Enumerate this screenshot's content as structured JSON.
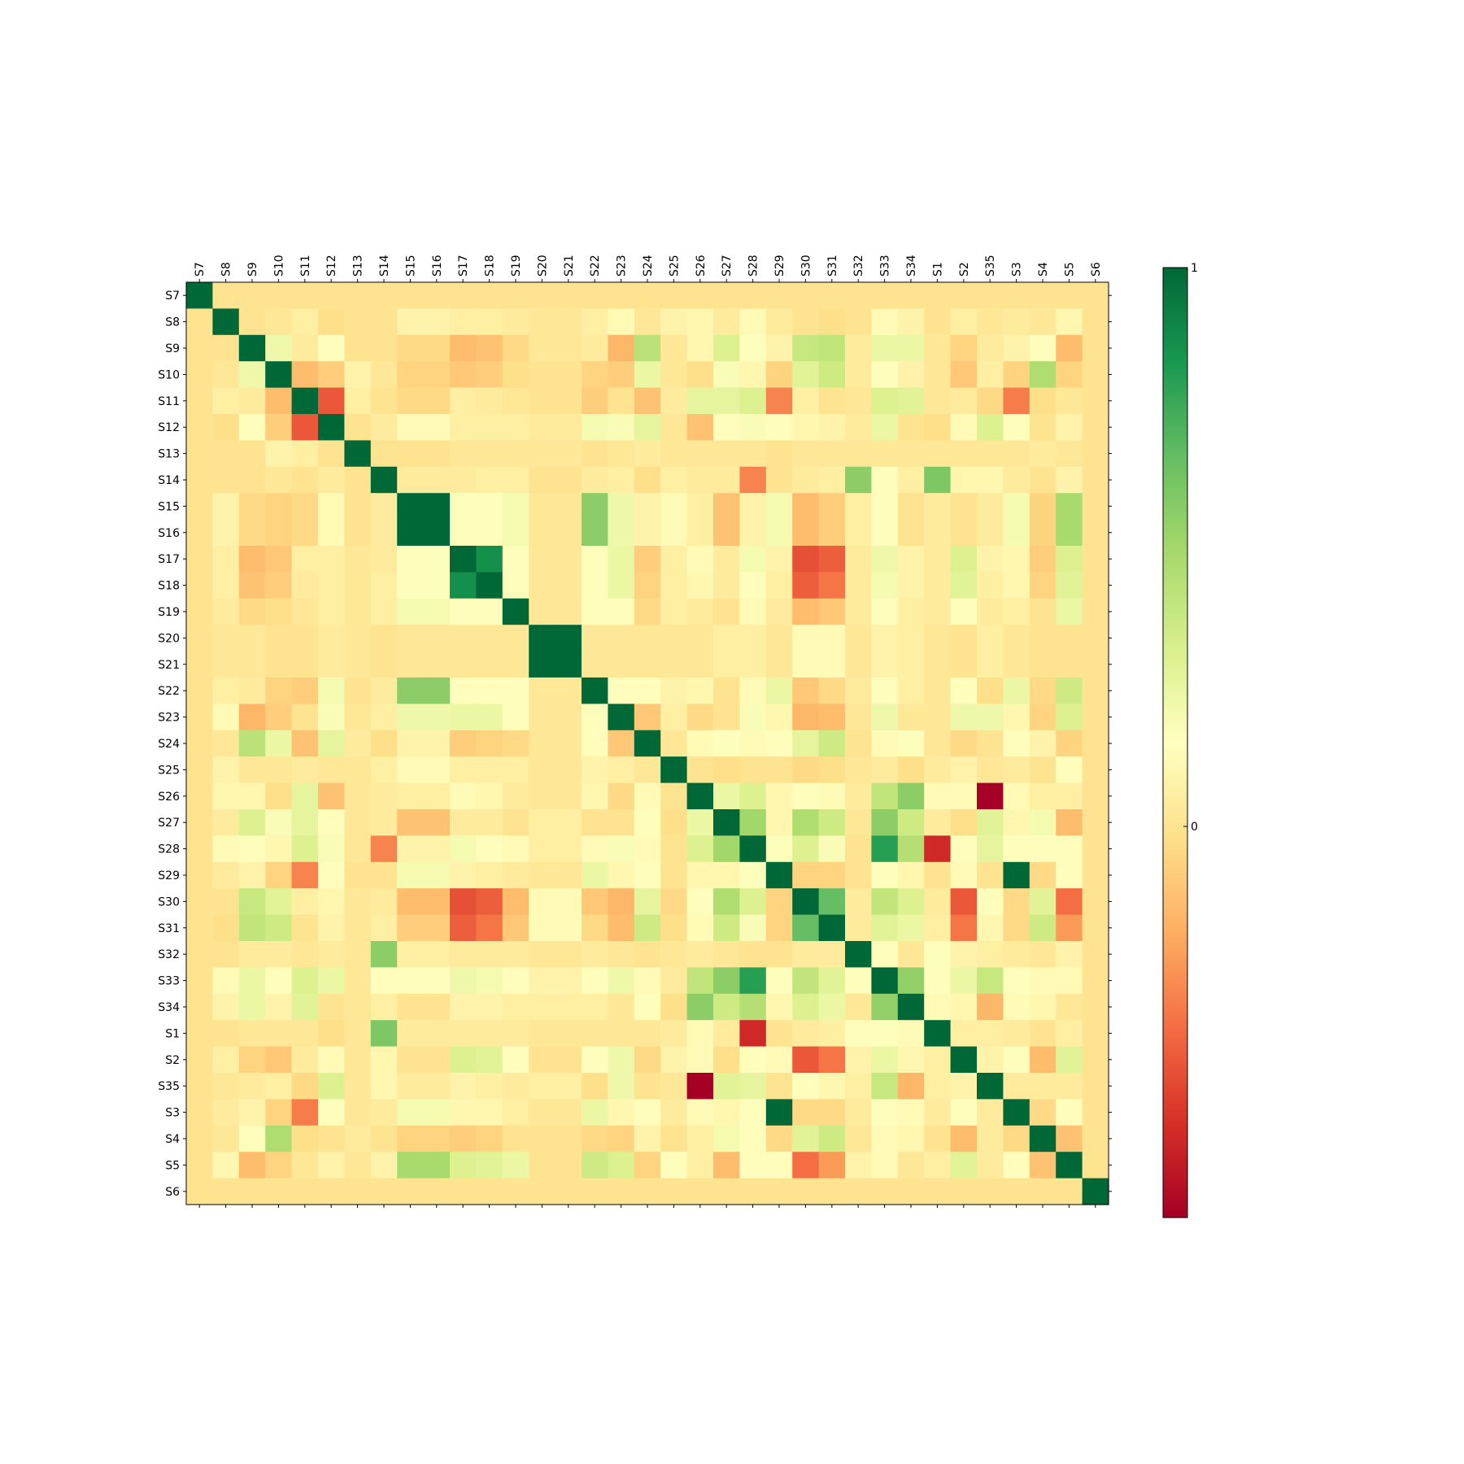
{
  "chart_data": {
    "type": "heatmap",
    "title": "",
    "xlabel": "",
    "ylabel": "",
    "x_tick_position": "top",
    "labels": [
      "S7",
      "S8",
      "S9",
      "S10",
      "S11",
      "S12",
      "S13",
      "S14",
      "S15",
      "S16",
      "S17",
      "S18",
      "S19",
      "S20",
      "S21",
      "S22",
      "S23",
      "S24",
      "S25",
      "S26",
      "S27",
      "S28",
      "S29",
      "S30",
      "S31",
      "S32",
      "S33",
      "S34",
      "S1",
      "S2",
      "S35",
      "S3",
      "S4",
      "S5",
      "S6"
    ],
    "colormap": "RdYlGn",
    "colorbar": {
      "ticks": [
        {
          "value": 1,
          "label": "1"
        },
        {
          "value": 0,
          "label": "0"
        }
      ],
      "vmin": -0.7,
      "vmax": 1.0
    },
    "matrix": [
      [
        1.0,
        0.0,
        0.0,
        0.0,
        0.0,
        0.0,
        0.0,
        0.0,
        0.0,
        0.0,
        0.0,
        0.0,
        0.0,
        0.0,
        0.0,
        0.0,
        0.0,
        0.0,
        0.0,
        0.0,
        0.0,
        0.0,
        0.0,
        0.0,
        0.0,
        0.0,
        0.0,
        0.0,
        0.0,
        0.0,
        0.0,
        0.0,
        0.0,
        0.0,
        0.0
      ],
      [
        0.0,
        1.0,
        0.0,
        0.02,
        0.06,
        -0.02,
        0.0,
        0.0,
        0.08,
        0.08,
        0.06,
        0.06,
        0.04,
        0.02,
        0.02,
        0.06,
        0.12,
        0.02,
        0.08,
        0.1,
        0.04,
        0.12,
        0.04,
        0.0,
        -0.02,
        0.0,
        0.12,
        0.08,
        0.0,
        0.06,
        0.02,
        0.04,
        0.02,
        0.1,
        0.0
      ],
      [
        0.0,
        0.0,
        1.0,
        0.22,
        0.04,
        0.16,
        0.0,
        0.0,
        -0.04,
        -0.04,
        -0.14,
        -0.12,
        -0.04,
        0.02,
        0.02,
        0.04,
        -0.16,
        0.42,
        0.02,
        0.1,
        0.3,
        0.16,
        0.08,
        0.38,
        0.4,
        0.04,
        0.24,
        0.24,
        0.02,
        -0.06,
        0.04,
        0.08,
        0.14,
        -0.14,
        0.0
      ],
      [
        0.0,
        0.02,
        0.22,
        1.0,
        -0.14,
        -0.08,
        0.08,
        0.02,
        -0.06,
        -0.06,
        -0.1,
        -0.08,
        -0.02,
        0.0,
        0.0,
        -0.06,
        -0.08,
        0.24,
        0.02,
        -0.02,
        0.18,
        0.1,
        -0.06,
        0.28,
        0.36,
        0.04,
        0.14,
        0.08,
        0.02,
        -0.1,
        0.06,
        -0.06,
        0.46,
        -0.06,
        0.0
      ],
      [
        0.0,
        0.06,
        0.04,
        -0.14,
        1.0,
        -0.42,
        0.06,
        0.0,
        -0.04,
        -0.04,
        0.06,
        0.04,
        0.02,
        0.0,
        0.0,
        -0.08,
        0.0,
        -0.12,
        0.04,
        0.26,
        0.26,
        0.3,
        -0.3,
        0.06,
        0.0,
        0.02,
        0.3,
        0.28,
        0.02,
        0.04,
        -0.04,
        -0.32,
        -0.02,
        0.02,
        0.0
      ],
      [
        0.0,
        -0.02,
        0.16,
        -0.08,
        -0.42,
        1.0,
        0.0,
        0.04,
        0.12,
        0.12,
        0.06,
        0.06,
        0.06,
        0.04,
        0.04,
        0.2,
        0.18,
        0.26,
        0.02,
        -0.12,
        0.14,
        0.18,
        0.14,
        0.1,
        0.08,
        0.04,
        0.24,
        0.0,
        -0.02,
        0.12,
        0.3,
        0.16,
        0.0,
        0.08,
        0.0
      ],
      [
        0.0,
        0.0,
        0.0,
        0.08,
        0.06,
        0.0,
        1.0,
        0.0,
        0.0,
        0.0,
        0.02,
        0.02,
        0.02,
        0.02,
        0.02,
        0.0,
        0.02,
        0.04,
        0.02,
        0.02,
        0.02,
        0.02,
        0.0,
        0.02,
        0.02,
        0.02,
        0.02,
        0.02,
        0.02,
        0.02,
        0.02,
        0.02,
        0.04,
        0.02,
        0.0
      ],
      [
        0.0,
        0.0,
        0.0,
        0.02,
        0.0,
        0.04,
        0.0,
        1.0,
        0.04,
        0.04,
        0.04,
        0.06,
        0.06,
        0.0,
        0.0,
        0.04,
        0.06,
        -0.02,
        0.06,
        0.04,
        0.04,
        -0.3,
        0.0,
        0.04,
        0.06,
        0.56,
        0.14,
        0.06,
        0.6,
        0.1,
        0.1,
        0.04,
        0.0,
        0.08,
        0.0
      ],
      [
        0.0,
        0.08,
        -0.04,
        -0.06,
        -0.04,
        0.12,
        0.0,
        0.04,
        1.0,
        1.0,
        0.16,
        0.16,
        0.2,
        0.02,
        0.02,
        0.56,
        0.22,
        0.08,
        0.12,
        0.06,
        -0.12,
        0.08,
        0.2,
        -0.14,
        -0.08,
        0.06,
        0.14,
        0.0,
        0.04,
        0.0,
        0.04,
        0.2,
        -0.06,
        0.48,
        0.0
      ],
      [
        0.0,
        0.08,
        -0.04,
        -0.06,
        -0.04,
        0.12,
        0.0,
        0.04,
        1.0,
        1.0,
        0.16,
        0.16,
        0.2,
        0.02,
        0.02,
        0.56,
        0.22,
        0.08,
        0.12,
        0.06,
        -0.12,
        0.08,
        0.2,
        -0.14,
        -0.08,
        0.06,
        0.14,
        0.0,
        0.04,
        0.0,
        0.04,
        0.2,
        -0.06,
        0.48,
        0.0
      ],
      [
        0.0,
        0.06,
        -0.14,
        -0.1,
        0.06,
        0.06,
        0.02,
        0.04,
        0.16,
        0.16,
        1.0,
        0.86,
        0.16,
        0.02,
        0.02,
        0.14,
        0.24,
        -0.08,
        0.06,
        0.12,
        0.04,
        0.2,
        0.08,
        -0.44,
        -0.4,
        0.04,
        0.22,
        0.08,
        0.04,
        0.3,
        0.08,
        0.1,
        -0.08,
        0.3,
        0.0
      ],
      [
        0.0,
        0.06,
        -0.12,
        -0.08,
        0.04,
        0.06,
        0.02,
        0.06,
        0.16,
        0.16,
        0.86,
        1.0,
        0.16,
        0.02,
        0.02,
        0.14,
        0.24,
        -0.06,
        0.06,
        0.1,
        0.04,
        0.14,
        0.06,
        -0.4,
        -0.34,
        0.04,
        0.2,
        0.08,
        0.04,
        0.28,
        0.06,
        0.1,
        -0.06,
        0.28,
        0.0
      ],
      [
        0.0,
        0.04,
        -0.04,
        -0.02,
        0.02,
        0.06,
        0.02,
        0.06,
        0.2,
        0.2,
        0.16,
        0.16,
        1.0,
        0.02,
        0.02,
        0.16,
        0.16,
        -0.04,
        0.06,
        0.04,
        0.0,
        0.12,
        0.04,
        -0.14,
        -0.1,
        0.04,
        0.14,
        0.06,
        0.04,
        0.14,
        0.04,
        0.06,
        0.0,
        0.24,
        0.0
      ],
      [
        0.0,
        0.02,
        0.02,
        0.0,
        0.0,
        0.04,
        0.02,
        0.0,
        0.02,
        0.02,
        0.02,
        0.02,
        0.02,
        1.0,
        1.0,
        0.02,
        0.02,
        0.02,
        0.02,
        0.02,
        0.06,
        0.06,
        0.02,
        0.12,
        0.12,
        0.02,
        0.08,
        0.06,
        0.02,
        0.0,
        0.06,
        0.02,
        0.0,
        0.0,
        0.0
      ],
      [
        0.0,
        0.02,
        0.02,
        0.0,
        0.0,
        0.04,
        0.02,
        0.0,
        0.02,
        0.02,
        0.02,
        0.02,
        0.02,
        1.0,
        1.0,
        0.02,
        0.02,
        0.02,
        0.02,
        0.02,
        0.06,
        0.06,
        0.02,
        0.12,
        0.12,
        0.02,
        0.08,
        0.06,
        0.02,
        0.0,
        0.06,
        0.02,
        0.0,
        0.0,
        0.0
      ],
      [
        0.0,
        0.06,
        0.04,
        -0.06,
        -0.08,
        0.2,
        0.0,
        0.04,
        0.56,
        0.56,
        0.14,
        0.14,
        0.16,
        0.02,
        0.02,
        1.0,
        0.14,
        0.14,
        0.08,
        0.1,
        0.0,
        0.12,
        0.24,
        -0.1,
        -0.04,
        0.04,
        0.14,
        0.06,
        0.02,
        0.14,
        -0.02,
        0.24,
        -0.04,
        0.36,
        0.0
      ],
      [
        0.0,
        0.12,
        -0.16,
        -0.08,
        0.0,
        0.18,
        0.02,
        0.06,
        0.22,
        0.22,
        0.24,
        0.24,
        0.16,
        0.02,
        0.02,
        0.14,
        1.0,
        -0.1,
        0.06,
        -0.04,
        0.0,
        0.18,
        0.1,
        -0.16,
        -0.14,
        0.02,
        0.22,
        0.02,
        0.02,
        0.22,
        0.22,
        0.1,
        -0.06,
        0.3,
        0.0
      ],
      [
        0.0,
        0.02,
        0.42,
        0.24,
        -0.12,
        0.26,
        0.04,
        -0.02,
        0.08,
        0.08,
        -0.08,
        -0.06,
        -0.04,
        0.02,
        0.02,
        0.14,
        -0.1,
        1.0,
        0.02,
        0.12,
        0.16,
        0.12,
        0.14,
        0.26,
        0.36,
        0.0,
        0.12,
        0.16,
        0.02,
        -0.04,
        0.0,
        0.14,
        0.08,
        -0.06,
        0.0
      ],
      [
        0.0,
        0.08,
        0.02,
        0.02,
        0.04,
        0.02,
        0.02,
        0.06,
        0.12,
        0.12,
        0.06,
        0.06,
        0.06,
        0.02,
        0.02,
        0.08,
        0.06,
        0.02,
        1.0,
        0.0,
        -0.02,
        0.0,
        0.0,
        -0.04,
        -0.02,
        0.02,
        0.04,
        -0.02,
        0.04,
        0.08,
        0.02,
        0.04,
        0.0,
        0.14,
        0.0
      ],
      [
        0.0,
        0.1,
        0.1,
        -0.02,
        0.26,
        -0.12,
        0.02,
        0.04,
        0.06,
        0.06,
        0.12,
        0.1,
        0.04,
        0.02,
        0.02,
        0.1,
        -0.04,
        0.12,
        0.0,
        1.0,
        0.24,
        0.3,
        0.1,
        0.16,
        0.12,
        0.04,
        0.4,
        0.56,
        0.12,
        0.12,
        -0.7,
        0.12,
        0.06,
        0.06,
        0.0
      ],
      [
        0.0,
        0.04,
        0.3,
        0.18,
        0.26,
        0.14,
        0.02,
        0.04,
        -0.12,
        -0.12,
        0.04,
        0.04,
        0.0,
        0.06,
        0.06,
        0.0,
        0.0,
        0.16,
        -0.02,
        0.24,
        1.0,
        0.5,
        0.1,
        0.46,
        0.36,
        0.02,
        0.56,
        0.36,
        0.04,
        -0.02,
        0.28,
        0.1,
        0.2,
        -0.14,
        0.0
      ],
      [
        0.0,
        0.12,
        0.16,
        0.1,
        0.3,
        0.18,
        0.02,
        -0.3,
        0.08,
        0.08,
        0.2,
        0.14,
        0.12,
        0.06,
        0.06,
        0.12,
        0.18,
        0.12,
        0.0,
        0.3,
        0.5,
        1.0,
        0.16,
        0.3,
        0.18,
        0.0,
        0.8,
        0.44,
        -0.56,
        0.14,
        0.26,
        0.14,
        0.14,
        0.14,
        0.0
      ],
      [
        0.0,
        0.04,
        0.08,
        -0.06,
        -0.3,
        0.14,
        0.0,
        0.0,
        0.2,
        0.2,
        0.08,
        0.06,
        0.04,
        0.02,
        0.02,
        0.24,
        0.1,
        0.14,
        0.0,
        0.1,
        0.1,
        0.16,
        1.0,
        -0.06,
        -0.06,
        0.0,
        0.16,
        0.1,
        0.0,
        0.12,
        0.0,
        1.0,
        -0.04,
        0.14,
        0.0
      ],
      [
        0.0,
        0.0,
        0.38,
        0.28,
        0.06,
        0.1,
        0.02,
        0.04,
        -0.14,
        -0.14,
        -0.44,
        -0.4,
        -0.14,
        0.12,
        0.12,
        -0.1,
        -0.16,
        0.26,
        -0.04,
        0.16,
        0.46,
        0.3,
        -0.06,
        1.0,
        0.66,
        0.04,
        0.4,
        0.3,
        0.04,
        -0.42,
        0.14,
        -0.04,
        0.28,
        -0.36,
        0.0
      ],
      [
        0.0,
        -0.02,
        0.4,
        0.36,
        0.0,
        0.08,
        0.02,
        0.06,
        -0.08,
        -0.08,
        -0.4,
        -0.34,
        -0.1,
        0.12,
        0.12,
        -0.04,
        -0.14,
        0.36,
        -0.02,
        0.12,
        0.36,
        0.18,
        -0.06,
        0.66,
        1.0,
        0.04,
        0.28,
        0.24,
        0.06,
        -0.34,
        0.1,
        -0.04,
        0.36,
        -0.24,
        0.0
      ],
      [
        0.0,
        0.0,
        0.04,
        0.04,
        0.02,
        0.04,
        0.02,
        0.56,
        0.06,
        0.06,
        0.04,
        0.04,
        0.04,
        0.02,
        0.02,
        0.04,
        0.02,
        0.0,
        0.02,
        0.04,
        0.02,
        0.0,
        0.0,
        0.04,
        0.04,
        1.0,
        0.16,
        0.02,
        0.16,
        0.08,
        0.06,
        0.04,
        0.02,
        0.08,
        0.0
      ],
      [
        0.0,
        0.12,
        0.24,
        0.14,
        0.3,
        0.24,
        0.02,
        0.14,
        0.14,
        0.14,
        0.22,
        0.2,
        0.14,
        0.08,
        0.08,
        0.14,
        0.22,
        0.12,
        0.04,
        0.4,
        0.56,
        0.8,
        0.16,
        0.4,
        0.28,
        0.16,
        1.0,
        0.54,
        0.16,
        0.24,
        0.38,
        0.14,
        0.12,
        0.12,
        0.0
      ],
      [
        0.0,
        0.08,
        0.24,
        0.08,
        0.28,
        0.0,
        0.02,
        0.06,
        0.0,
        0.0,
        0.08,
        0.08,
        0.06,
        0.06,
        0.06,
        0.06,
        0.02,
        0.16,
        -0.02,
        0.56,
        0.36,
        0.44,
        0.1,
        0.3,
        0.24,
        0.02,
        0.54,
        1.0,
        0.12,
        0.1,
        -0.16,
        0.12,
        0.1,
        0.02,
        0.0
      ],
      [
        0.0,
        0.0,
        0.02,
        0.02,
        0.02,
        -0.02,
        0.02,
        0.6,
        0.04,
        0.04,
        0.04,
        0.04,
        0.04,
        0.02,
        0.02,
        0.02,
        0.02,
        0.02,
        0.04,
        0.12,
        0.04,
        -0.56,
        0.0,
        0.04,
        0.06,
        0.16,
        0.16,
        0.12,
        1.0,
        0.06,
        0.06,
        0.04,
        0.0,
        0.06,
        0.0
      ],
      [
        0.0,
        0.06,
        -0.06,
        -0.1,
        0.04,
        0.12,
        0.02,
        0.1,
        0.0,
        0.0,
        0.3,
        0.28,
        0.14,
        0.0,
        0.0,
        0.14,
        0.22,
        -0.04,
        0.08,
        0.12,
        -0.02,
        0.14,
        0.12,
        -0.42,
        -0.34,
        0.08,
        0.24,
        0.1,
        0.06,
        1.0,
        0.08,
        0.16,
        -0.14,
        0.28,
        0.0
      ],
      [
        0.0,
        0.02,
        0.04,
        0.06,
        -0.04,
        0.3,
        0.02,
        0.1,
        0.04,
        0.04,
        0.08,
        0.06,
        0.04,
        0.06,
        0.06,
        -0.02,
        0.22,
        0.0,
        0.02,
        -0.7,
        0.28,
        0.26,
        0.0,
        0.14,
        0.1,
        0.06,
        0.38,
        -0.16,
        0.06,
        0.08,
        1.0,
        0.04,
        0.04,
        0.04,
        0.0
      ],
      [
        0.0,
        0.04,
        0.08,
        -0.06,
        -0.32,
        0.16,
        0.02,
        0.04,
        0.2,
        0.2,
        0.1,
        0.1,
        0.06,
        0.02,
        0.02,
        0.24,
        0.1,
        0.14,
        0.04,
        0.12,
        0.1,
        0.14,
        1.0,
        -0.04,
        -0.04,
        0.04,
        0.14,
        0.12,
        0.04,
        0.16,
        0.04,
        1.0,
        -0.04,
        0.14,
        0.0
      ],
      [
        0.0,
        0.02,
        0.14,
        0.46,
        -0.02,
        0.0,
        0.04,
        0.0,
        -0.06,
        -0.06,
        -0.08,
        -0.06,
        0.0,
        0.0,
        0.0,
        -0.04,
        -0.06,
        0.08,
        0.0,
        0.06,
        0.2,
        0.14,
        -0.04,
        0.28,
        0.36,
        0.02,
        0.12,
        0.1,
        0.0,
        -0.14,
        0.04,
        -0.04,
        1.0,
        -0.12,
        0.0
      ],
      [
        0.0,
        0.1,
        -0.14,
        -0.06,
        0.02,
        0.08,
        0.02,
        0.08,
        0.48,
        0.48,
        0.3,
        0.28,
        0.24,
        0.0,
        0.0,
        0.36,
        0.3,
        -0.06,
        0.14,
        0.06,
        -0.14,
        0.14,
        0.14,
        -0.36,
        -0.24,
        0.08,
        0.12,
        0.02,
        0.06,
        0.28,
        0.04,
        0.14,
        -0.12,
        1.0,
        0.0
      ],
      [
        0.0,
        0.0,
        0.0,
        0.0,
        0.0,
        0.0,
        0.0,
        0.0,
        0.0,
        0.0,
        0.0,
        0.0,
        0.0,
        0.0,
        0.0,
        0.0,
        0.0,
        0.0,
        0.0,
        0.0,
        0.0,
        0.0,
        0.0,
        0.0,
        0.0,
        0.0,
        0.0,
        0.0,
        0.0,
        0.0,
        0.0,
        0.0,
        0.0,
        0.0,
        1.0
      ]
    ]
  }
}
